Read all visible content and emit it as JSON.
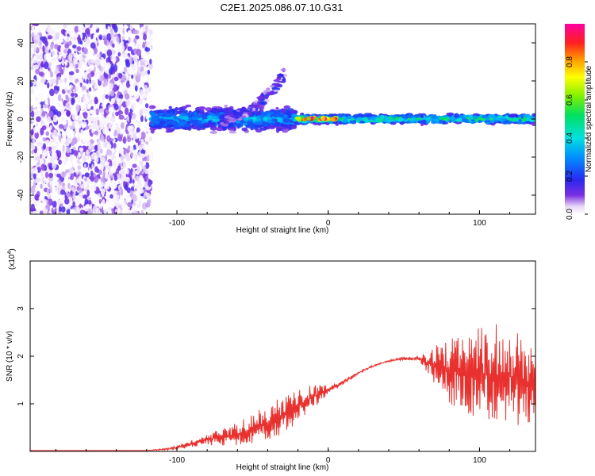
{
  "figure": {
    "title": "C2E1.2025.086.07.10.G31"
  },
  "chart_data": [
    {
      "type": "heatmap",
      "title": "C2E1.2025.086.07.10.G31",
      "xlabel": "Height of straight line (km)",
      "ylabel": "Frequency (Hz)",
      "xlim": [
        -197,
        137
      ],
      "ylim": [
        -50,
        50
      ],
      "xticks": [
        -100,
        0,
        100
      ],
      "yticks": [
        -40,
        -20,
        0,
        20,
        40
      ],
      "colorbar": {
        "label": "Normalized spectral amplitude",
        "range": [
          0,
          1
        ],
        "ticks": [
          0.0,
          0.2,
          0.4,
          0.6,
          0.8
        ]
      },
      "regions": [
        {
          "name": "broadband noise",
          "x_range": [
            -197,
            -117
          ],
          "freq_range": [
            -50,
            50
          ],
          "amplitude": 0.05
        },
        {
          "name": "weak band",
          "x_range": [
            -117,
            -22
          ],
          "freq_range": [
            -8,
            8
          ],
          "amplitude": 0.35
        },
        {
          "name": "drifting feature",
          "x_range": [
            -70,
            -28
          ],
          "freq_range": [
            0,
            25
          ],
          "amplitude": 0.1
        },
        {
          "name": "strong band",
          "x_range": [
            -22,
            137
          ],
          "freq_range": [
            -3,
            3
          ],
          "amplitude": 0.5
        },
        {
          "name": "peak",
          "x_range": [
            -20,
            5
          ],
          "freq_range": [
            -1.5,
            1.5
          ],
          "amplitude": 0.95
        }
      ]
    },
    {
      "type": "line",
      "xlabel": "Height of straight line (km)",
      "ylabel": "SNR (10 * v/v)",
      "scale_label": "(x10",
      "scale_exp": "4",
      "xlim": [
        -197,
        137
      ],
      "ylim": [
        0,
        4
      ],
      "xticks": [
        -100,
        0,
        100
      ],
      "yticks": [
        1,
        2,
        3
      ],
      "series": [
        {
          "name": "SNR",
          "color": "#e8312e",
          "envelope_x": [
            -197,
            -120,
            -105,
            -95,
            -80,
            -60,
            -45,
            -30,
            -20,
            -10,
            0,
            10,
            20,
            30,
            40,
            50,
            60,
            70,
            80,
            90,
            100,
            110,
            120,
            130,
            137
          ],
          "envelope_y": [
            0.02,
            0.02,
            0.05,
            0.12,
            0.25,
            0.35,
            0.55,
            0.75,
            0.95,
            1.15,
            1.3,
            1.45,
            1.65,
            1.8,
            1.9,
            1.95,
            1.95,
            1.8,
            1.7,
            1.7,
            1.6,
            1.6,
            1.6,
            1.45,
            1.4
          ],
          "noise_amp": [
            0,
            0,
            0.03,
            0.06,
            0.12,
            0.25,
            0.35,
            0.4,
            0.35,
            0.25,
            0.1,
            0.05,
            0.03,
            0.02,
            0.02,
            0.03,
            0.05,
            0.4,
            0.7,
            0.85,
            1.0,
            1.1,
            1.1,
            0.9,
            0.8
          ]
        }
      ]
    }
  ]
}
